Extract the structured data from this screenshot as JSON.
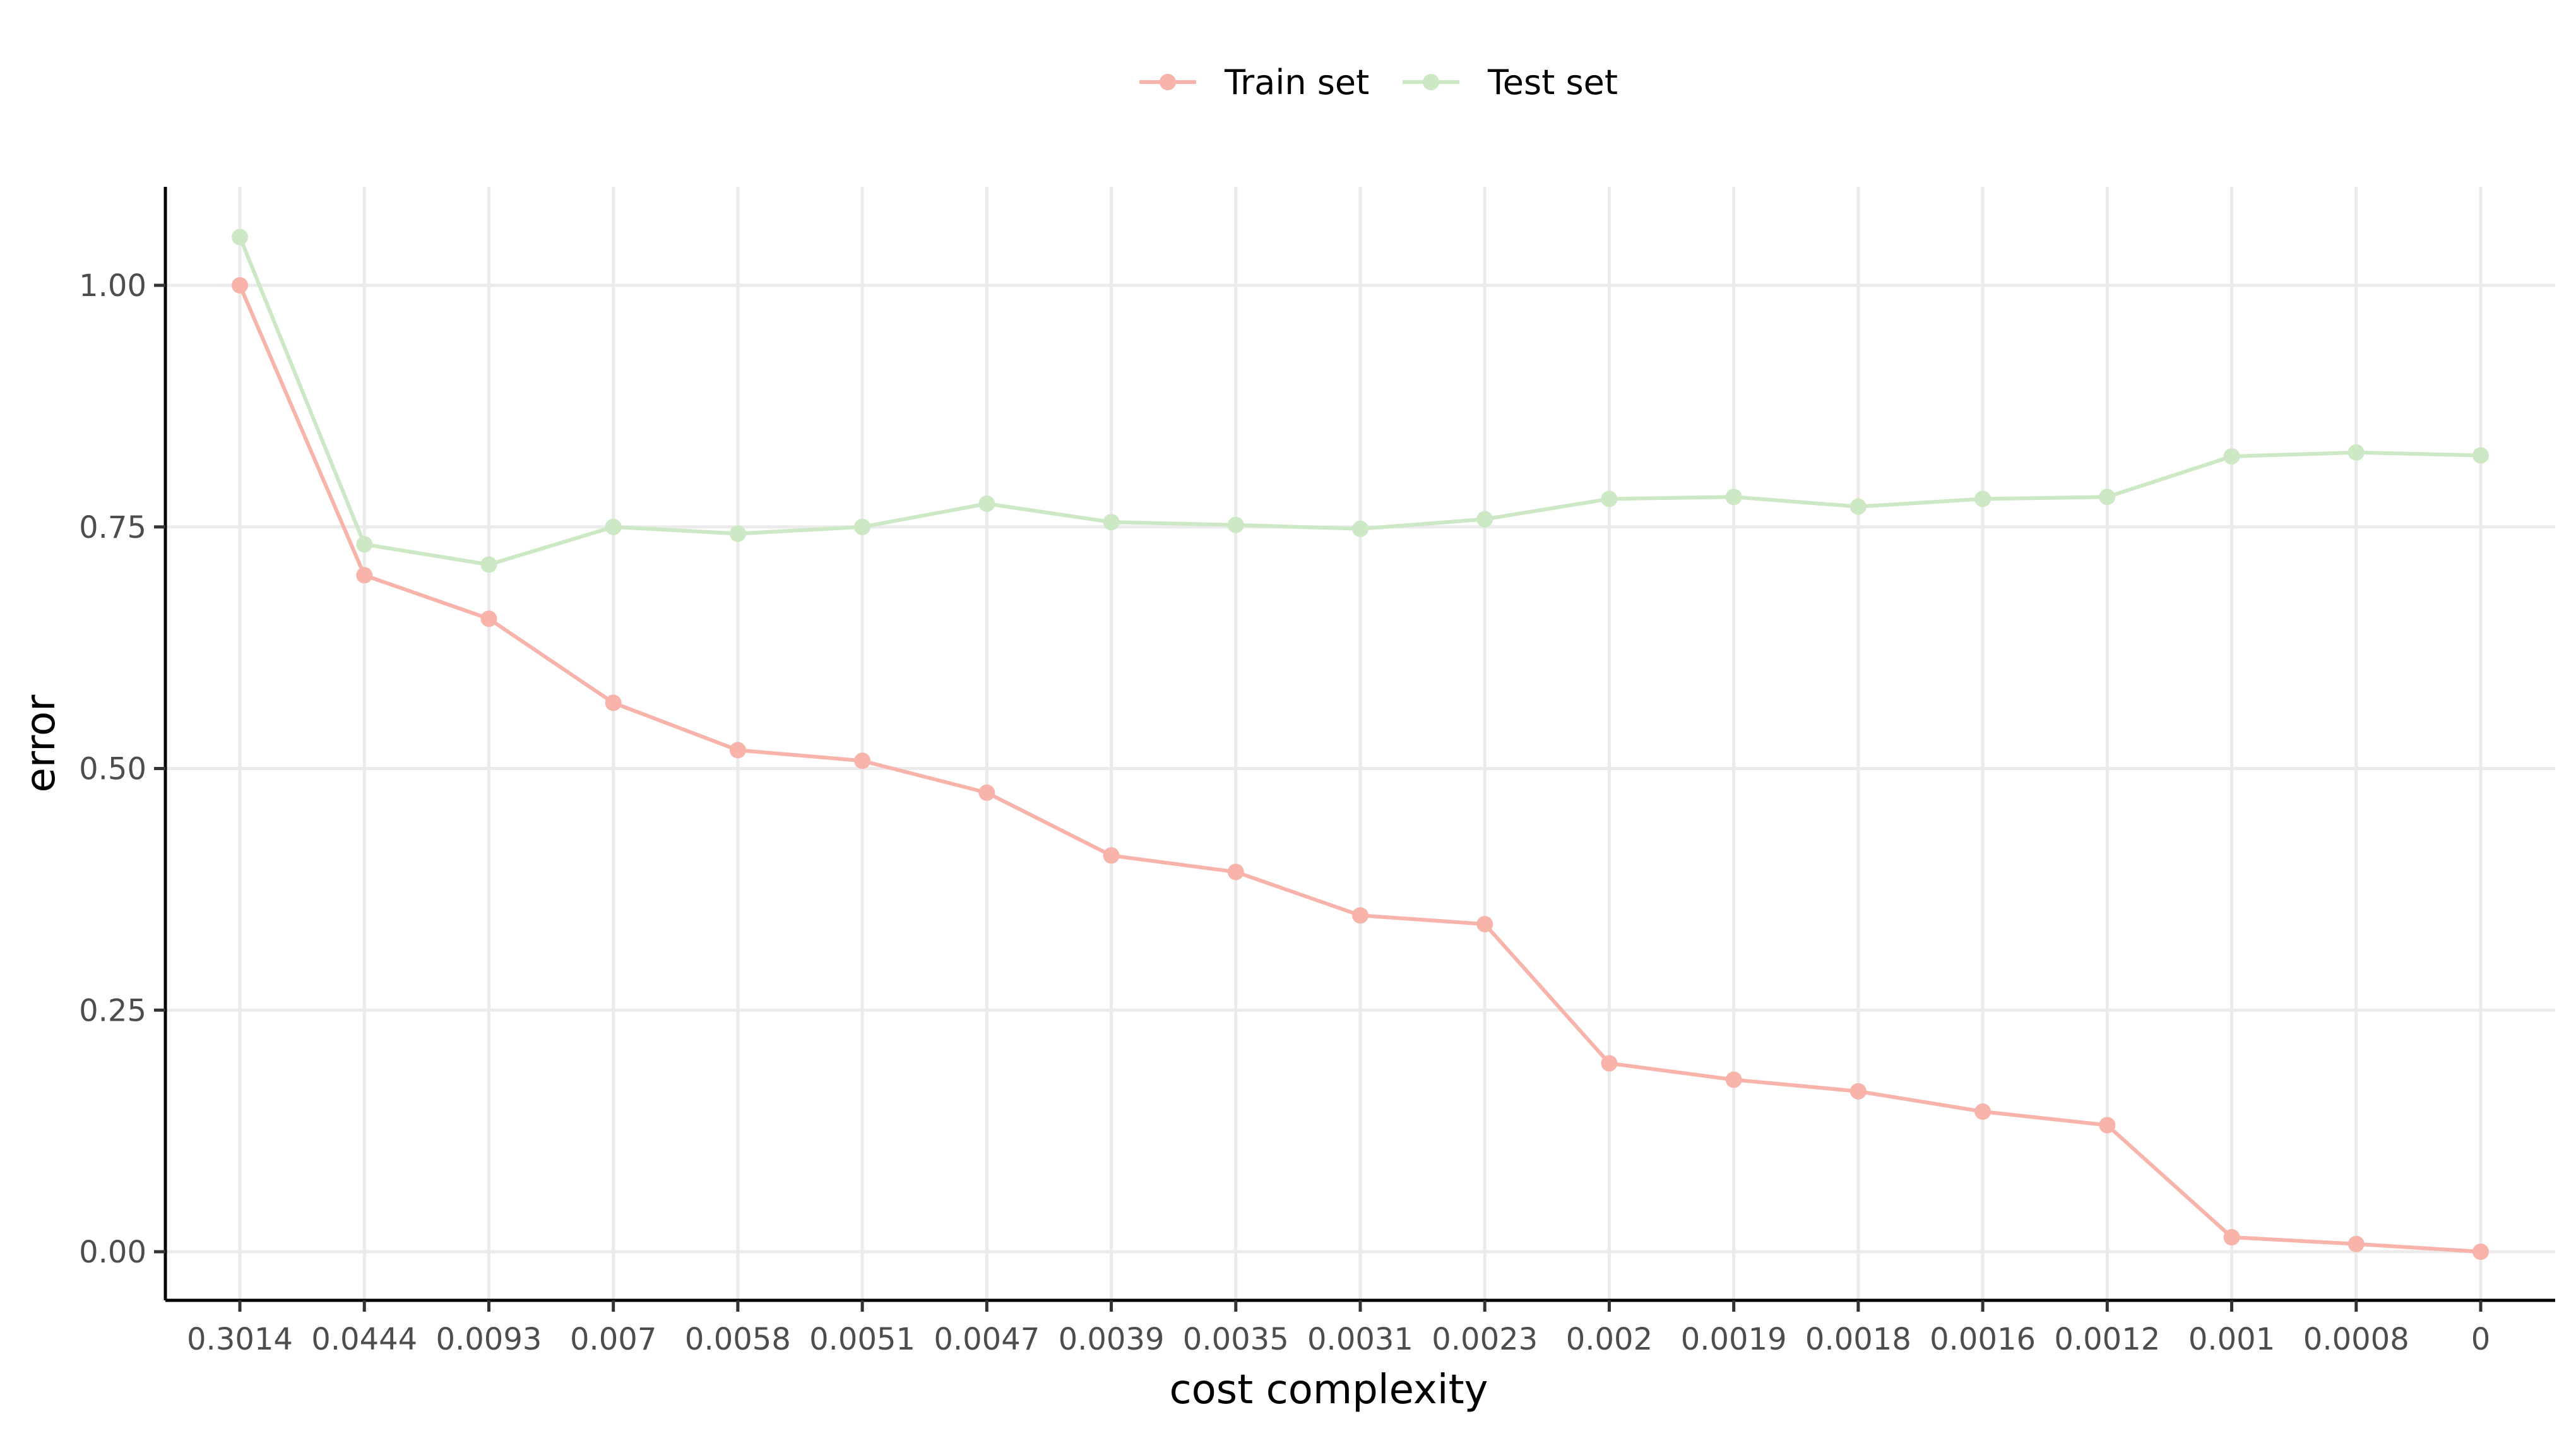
{
  "chart_data": {
    "type": "line",
    "title": "",
    "xlabel": "cost complexity",
    "ylabel": "error",
    "categories": [
      "0.3014",
      "0.0444",
      "0.0093",
      "0.007",
      "0.0058",
      "0.0051",
      "0.0047",
      "0.0039",
      "0.0035",
      "0.0031",
      "0.0023",
      "0.002",
      "0.0019",
      "0.0018",
      "0.0016",
      "0.0012",
      "0.001",
      "0.0008",
      "0"
    ],
    "y_ticks": [
      "0.00",
      "0.25",
      "0.50",
      "0.75",
      "1.00"
    ],
    "y_tick_values": [
      0,
      0.25,
      0.5,
      0.75,
      1.0
    ],
    "ylim": [
      -0.05,
      1.1
    ],
    "grid": true,
    "legend_position": "top",
    "series": [
      {
        "name": "Train set",
        "color": "#f8b3aa",
        "values": [
          1.0,
          0.7,
          0.655,
          0.568,
          0.519,
          0.508,
          0.475,
          0.41,
          0.393,
          0.348,
          0.339,
          0.195,
          0.178,
          0.166,
          0.145,
          0.131,
          0.015,
          0.008,
          0.0
        ]
      },
      {
        "name": "Test set",
        "color": "#cce8c4",
        "values": [
          1.05,
          0.732,
          0.711,
          0.75,
          0.743,
          0.75,
          0.774,
          0.755,
          0.752,
          0.748,
          0.758,
          0.779,
          0.781,
          0.771,
          0.779,
          0.781,
          0.823,
          0.827,
          0.824
        ]
      }
    ]
  }
}
